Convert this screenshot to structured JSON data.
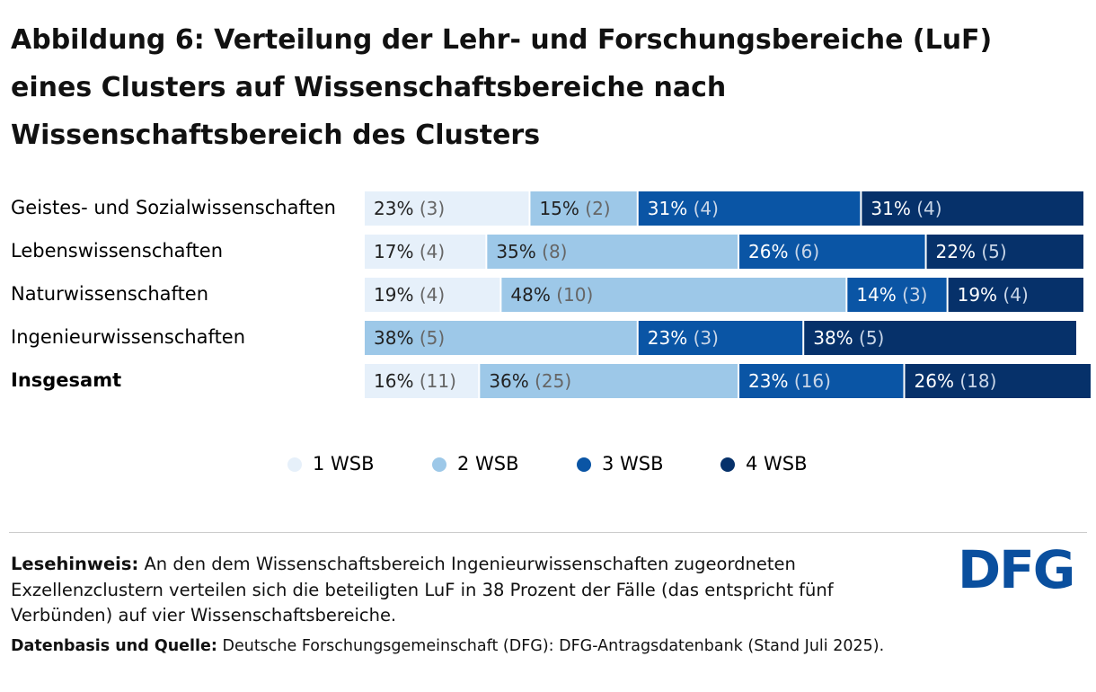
{
  "chart_data": {
    "type": "stacked-bar-horizontal",
    "title": "Abbildung 6: Verteilung der Lehr- und Forschungsbereiche (LuF) eines Clusters auf Wissenschaftsbereiche nach Wissenschaftsbereich des Clusters",
    "categories": [
      "Geistes- und Sozialwissenschaften",
      "Lebenswissenschaften",
      "Naturwissenschaften",
      "Ingenieurwissenschaften",
      "Insgesamt"
    ],
    "xlim": [
      0,
      100
    ],
    "series": [
      {
        "name": "1 WSB",
        "color": "#e6f0fa",
        "values": [
          23,
          17,
          19,
          null,
          16
        ],
        "value_labels": [
          "23% (3)",
          "17% (4)",
          "19% (4)",
          null,
          "16% (11)"
        ]
      },
      {
        "name": "2 WSB",
        "color": "#9dc8e8",
        "values": [
          15,
          35,
          48,
          38,
          36
        ],
        "value_labels": [
          "15% (2)",
          "35% (8)",
          "48% (10)",
          "38% (5)",
          "36% (25)"
        ]
      },
      {
        "name": "3 WSB",
        "color": "#0a55a5",
        "values": [
          31,
          26,
          14,
          23,
          23
        ],
        "value_labels": [
          "31% (4)",
          "26% (6)",
          "14% (3)",
          "23% (3)",
          "23% (16)"
        ]
      },
      {
        "name": "4 WSB",
        "color": "#06316a",
        "values": [
          31,
          22,
          19,
          38,
          26
        ],
        "value_labels": [
          "31% (4)",
          "22% (5)",
          "19% (4)",
          "38% (5)",
          "26% (18)"
        ]
      }
    ]
  },
  "footer": {
    "note_label": "Lesehinweis:",
    "note": "An den dem Wissenschaftsbereich Ingenieurwissenschaften zugeordneten Exzellenzclustern verteilen sich die beteiligten LuF in 38 Prozent der Fälle (das entspricht fünf Verbünden) auf vier Wissenschaftsbereiche.",
    "source_label": "Datenbasis und Quelle:",
    "source": "Deutsche Forschungsgemeinschaft (DFG): DFG-Antragsdatenbank (Stand Juli 2025).",
    "logo": "DFG"
  }
}
